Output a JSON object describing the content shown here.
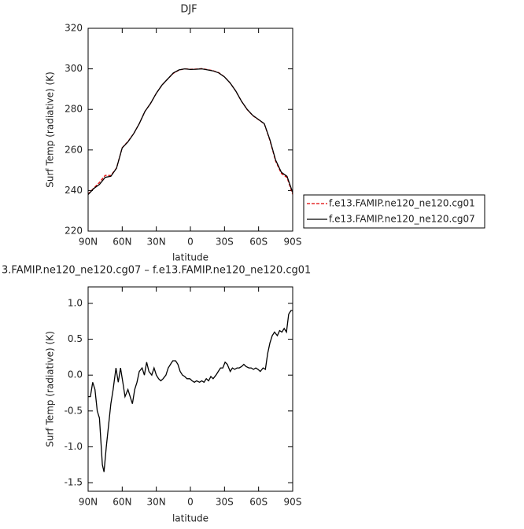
{
  "chart_data": [
    {
      "type": "line",
      "title": "DJF",
      "xlabel": "latitude",
      "ylabel": "Surf Temp (radiative) (K)",
      "xlim": [
        90,
        -90
      ],
      "xticks": [
        {
          "value": 90,
          "label": "90N"
        },
        {
          "value": 60,
          "label": "60N"
        },
        {
          "value": 30,
          "label": "30N"
        },
        0,
        {
          "value": -30,
          "label": "30S"
        },
        {
          "value": -60,
          "label": "60S"
        },
        {
          "value": -90,
          "label": "90S"
        }
      ],
      "ylim": [
        220,
        320
      ],
      "yticks": [
        220,
        240,
        260,
        280,
        300,
        320
      ],
      "legend": "right",
      "x": [
        90,
        85,
        80,
        75,
        70,
        65,
        60,
        55,
        50,
        45,
        40,
        35,
        30,
        25,
        20,
        15,
        10,
        5,
        0,
        -5,
        -10,
        -15,
        -20,
        -25,
        -30,
        -35,
        -40,
        -45,
        -50,
        -55,
        -60,
        -65,
        -70,
        -75,
        -80,
        -85,
        -90
      ],
      "series": [
        {
          "name": "f.e13.FAMIP.ne120_ne120.cg01",
          "color": "#e00000",
          "dash": "dashed",
          "values": [
            238.3,
            241.2,
            244,
            247.5,
            247.4,
            251.1,
            261.1,
            264.2,
            268,
            273,
            279,
            283,
            288,
            292,
            295,
            297.8,
            299.4,
            300,
            299.8,
            299.9,
            300.1,
            299.6,
            299.1,
            298.1,
            296.1,
            293,
            289,
            284,
            279.9,
            276.9,
            274.9,
            272.9,
            264.6,
            254.5,
            248.4,
            246.4,
            238.1
          ]
        },
        {
          "name": "f.e13.FAMIP.ne120_ne120.cg07",
          "color": "#000000",
          "dash": "solid",
          "values": [
            238,
            241,
            243,
            246.5,
            247,
            251,
            261,
            264,
            268,
            273,
            279,
            283,
            288,
            292,
            295,
            298,
            299.5,
            300,
            299.7,
            299.8,
            300,
            299.5,
            299,
            298,
            296,
            293,
            289,
            284,
            280,
            277,
            275,
            273,
            265,
            255,
            249,
            247,
            239
          ]
        }
      ]
    },
    {
      "type": "line",
      "title": "3.FAMIP.ne120_ne120.cg07 – f.e13.FAMIP.ne120_ne120.cg01",
      "xlabel": "latitude",
      "ylabel": "Surf Temp (radiative) (K)",
      "xlim": [
        90,
        -90
      ],
      "xticks": [
        {
          "value": 90,
          "label": "90N"
        },
        {
          "value": 60,
          "label": "60N"
        },
        {
          "value": 30,
          "label": "30N"
        },
        0,
        {
          "value": -30,
          "label": "30S"
        },
        {
          "value": -60,
          "label": "60S"
        },
        {
          "value": -90,
          "label": "90S"
        }
      ],
      "ylim": [
        -1.62,
        1.23
      ],
      "yticks": [
        {
          "value": -1.5,
          "label": "-1.5"
        },
        {
          "value": -1,
          "label": "-1.0"
        },
        -0.5,
        {
          "value": 0,
          "label": "0.0"
        },
        0.5,
        {
          "value": 1,
          "label": "1.0"
        }
      ],
      "x": [
        90,
        88,
        86,
        84,
        82,
        80,
        77.5,
        76,
        74,
        72,
        70,
        68,
        65.5,
        63.5,
        61.5,
        59.5,
        57.5,
        55,
        53,
        51,
        49,
        47,
        45,
        42.5,
        40.5,
        38.5,
        36.5,
        34,
        32,
        30,
        28,
        26,
        24,
        21.5,
        19.5,
        17.5,
        15.5,
        13,
        11,
        9,
        7,
        5,
        3,
        0.5,
        -1.5,
        -3.5,
        -5.5,
        -8,
        -10,
        -12,
        -14,
        -16,
        -18,
        -20,
        -22.5,
        -24.5,
        -26.5,
        -28.5,
        -30.5,
        -32.5,
        -35,
        -37,
        -39,
        -41,
        -43,
        -45,
        -47,
        -49,
        -51.5,
        -53.5,
        -55.5,
        -57.5,
        -59.5,
        -61.5,
        -64,
        -66,
        -68,
        -70,
        -72,
        -74,
        -76.5,
        -78.5,
        -80.5,
        -82.5,
        -84.5,
        -86.5,
        -88.5,
        -90
      ],
      "series": [
        {
          "color": "#000000",
          "dash": "solid",
          "values": [
            -0.3,
            -0.3,
            -0.1,
            -0.2,
            -0.5,
            -0.6,
            -1.25,
            -1.35,
            -1.0,
            -0.7,
            -0.4,
            -0.2,
            0.1,
            -0.1,
            0.1,
            -0.1,
            -0.3,
            -0.2,
            -0.3,
            -0.4,
            -0.2,
            -0.1,
            0.05,
            0.1,
            0.0,
            0.18,
            0.05,
            0.0,
            0.1,
            0.0,
            -0.05,
            -0.08,
            -0.05,
            0.0,
            0.1,
            0.15,
            0.2,
            0.2,
            0.15,
            0.05,
            0.0,
            -0.02,
            -0.05,
            -0.05,
            -0.08,
            -0.1,
            -0.08,
            -0.1,
            -0.08,
            -0.1,
            -0.05,
            -0.08,
            -0.02,
            -0.05,
            0.0,
            0.05,
            0.1,
            0.1,
            0.18,
            0.15,
            0.05,
            0.1,
            0.08,
            0.1,
            0.1,
            0.12,
            0.15,
            0.12,
            0.1,
            0.1,
            0.08,
            0.1,
            0.08,
            0.05,
            0.1,
            0.08,
            0.3,
            0.45,
            0.55,
            0.6,
            0.55,
            0.62,
            0.6,
            0.65,
            0.6,
            0.85,
            0.9,
            0.9
          ]
        }
      ]
    }
  ]
}
